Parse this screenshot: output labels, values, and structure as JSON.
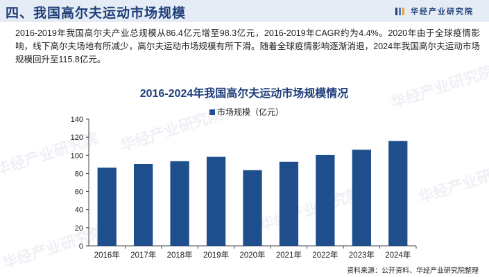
{
  "header": {
    "title": "四、我国高尔夫运动市场规模",
    "brand": "华经产业研究院"
  },
  "intro": "2016-2019年我国高尔夫产业总规模从86.4亿元增至98.3亿元，2016-2019年CAGR约为4.4%。2020年由于全球疫情影响，线下高尔夫场地有所减少，高尔夫运动市场规模有所下滑。随着全球疫情影响逐渐消退，2024年我国高尔夫运动市场规模回升至115.8亿元。",
  "watermark": "华经产业研究院",
  "source": "资料来源：公开资料、华经产业研究院整理",
  "chart_data": {
    "type": "bar",
    "title": "2016-2024年我国高尔夫运动市场规模情况",
    "categories": [
      "2016年",
      "2017年",
      "2018年",
      "2019年",
      "2020年",
      "2021年",
      "2022年",
      "2023年",
      "2024年"
    ],
    "series": [
      {
        "name": "市场规模（亿元）",
        "values": [
          86.4,
          90.3,
          93.5,
          98.3,
          83.6,
          92.8,
          100.3,
          106.2,
          115.8
        ]
      }
    ],
    "ylim": [
      0,
      140
    ],
    "yticks": [
      0,
      20,
      40,
      60,
      80,
      100,
      120,
      140
    ],
    "grid": false,
    "legend": "top-center",
    "bar_color": "#1f4e8c"
  }
}
